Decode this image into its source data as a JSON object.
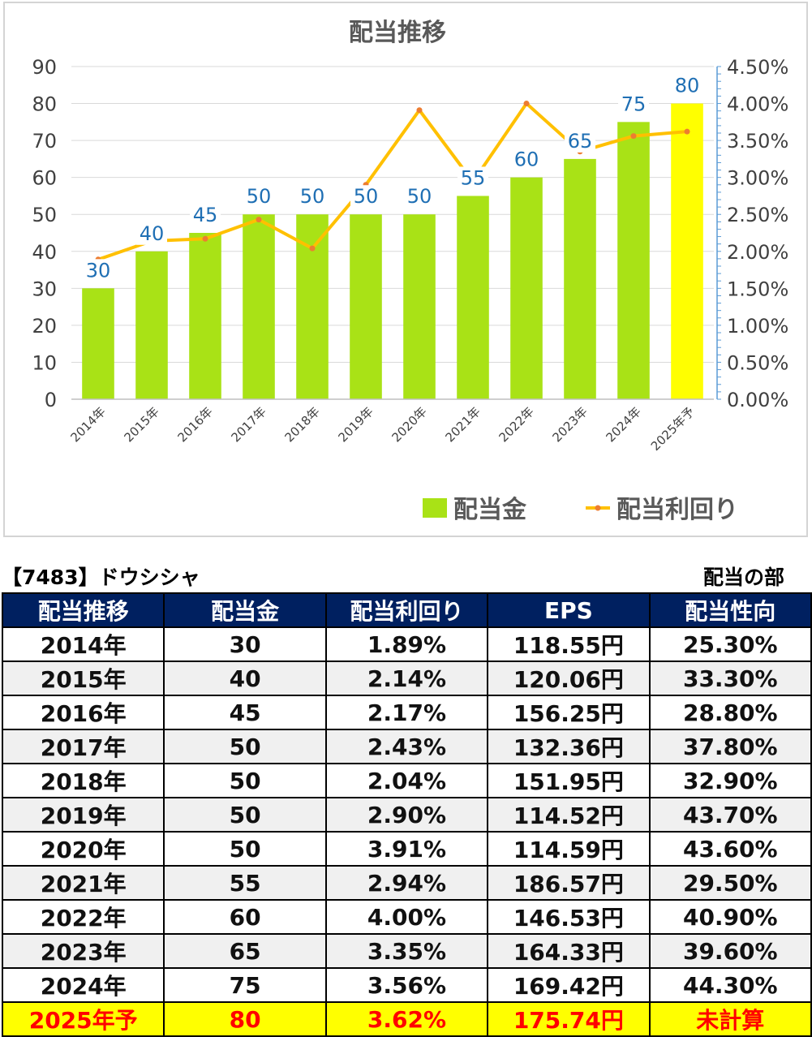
{
  "chart_data": {
    "type": "bar+line",
    "title": "配当推移",
    "categories": [
      "2014年",
      "2015年",
      "2016年",
      "2017年",
      "2018年",
      "2019年",
      "2020年",
      "2021年",
      "2022年",
      "2023年",
      "2024年",
      "2025年予"
    ],
    "series": [
      {
        "name": "配当金",
        "type": "bar",
        "axis": "left",
        "values": [
          30,
          40,
          45,
          50,
          50,
          50,
          50,
          55,
          60,
          65,
          75,
          80
        ],
        "color": "#a9e216",
        "highlight_color": "#ffff00",
        "highlight_index": 11
      },
      {
        "name": "配当利回り",
        "type": "line",
        "axis": "right",
        "values": [
          1.89,
          2.14,
          2.17,
          2.43,
          2.04,
          2.9,
          3.91,
          2.94,
          4.0,
          3.35,
          3.56,
          3.62
        ],
        "color": "#ffc000",
        "marker_color": "#ed7d31"
      }
    ],
    "ylim_left": [
      0,
      90
    ],
    "yticks_left": [
      "0",
      "10",
      "20",
      "30",
      "40",
      "50",
      "60",
      "70",
      "80",
      "90"
    ],
    "ylim_right": [
      0,
      4.5
    ],
    "yticks_right": [
      "0.00%",
      "0.50%",
      "1.00%",
      "1.50%",
      "2.00%",
      "2.50%",
      "3.00%",
      "3.50%",
      "4.00%",
      "4.50%"
    ],
    "data_labels": [
      "30",
      "40",
      "45",
      "50",
      "50",
      "50",
      "50",
      "55",
      "60",
      "65",
      "75",
      "80"
    ],
    "label_color": "#1f6fb4",
    "grid": true,
    "legend_position": "bottom-right"
  },
  "header": {
    "title": "【7483】ドウシシャ",
    "section": "配当の部"
  },
  "table": {
    "columns": [
      "配当推移",
      "配当金",
      "配当利回り",
      "EPS",
      "配当性向"
    ],
    "rows": [
      [
        "2014年",
        "30",
        "1.89%",
        "118.55円",
        "25.30%"
      ],
      [
        "2015年",
        "40",
        "2.14%",
        "120.06円",
        "33.30%"
      ],
      [
        "2016年",
        "45",
        "2.17%",
        "156.25円",
        "28.80%"
      ],
      [
        "2017年",
        "50",
        "2.43%",
        "132.36円",
        "37.80%"
      ],
      [
        "2018年",
        "50",
        "2.04%",
        "151.95円",
        "32.90%"
      ],
      [
        "2019年",
        "50",
        "2.90%",
        "114.52円",
        "43.70%"
      ],
      [
        "2020年",
        "50",
        "3.91%",
        "114.59円",
        "43.60%"
      ],
      [
        "2021年",
        "55",
        "2.94%",
        "186.57円",
        "29.50%"
      ],
      [
        "2022年",
        "60",
        "4.00%",
        "146.53円",
        "40.90%"
      ],
      [
        "2023年",
        "65",
        "3.35%",
        "164.33円",
        "39.60%"
      ],
      [
        "2024年",
        "75",
        "3.56%",
        "169.42円",
        "44.30%"
      ],
      [
        "2025年予",
        "80",
        "3.62%",
        "175.74円",
        "未計算"
      ]
    ]
  }
}
